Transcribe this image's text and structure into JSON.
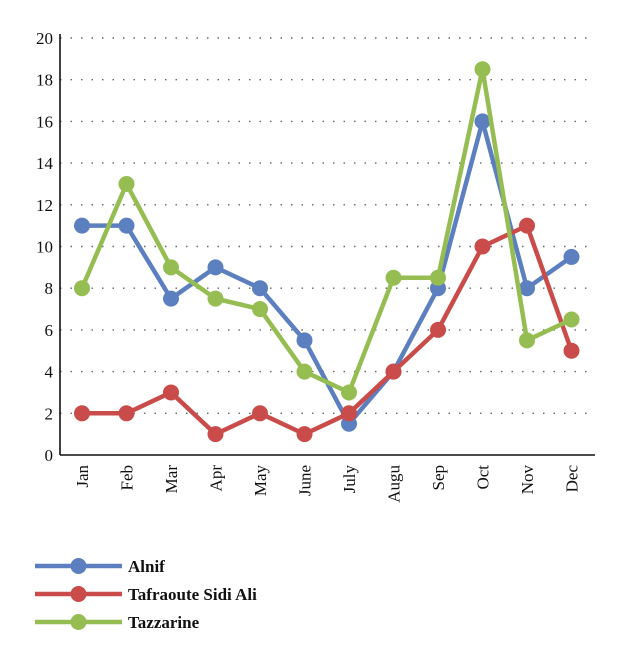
{
  "chart_data": {
    "type": "line",
    "categories": [
      "Jan",
      "Feb",
      "Mar",
      "Apr",
      "May",
      "June",
      "July",
      "Augu",
      "Sep",
      "Oct",
      "Nov",
      "Dec"
    ],
    "ylim": [
      0,
      20
    ],
    "yticks": [
      "0",
      "2",
      "4",
      "6",
      "8",
      "10",
      "12",
      "14",
      "16",
      "18",
      "20"
    ],
    "grid": true,
    "legend_position": "bottom-left",
    "series": [
      {
        "name": "Alnif",
        "color": "#5b7fbf",
        "values": [
          11,
          11,
          7.5,
          9,
          8,
          5.5,
          1.5,
          4,
          8,
          16,
          8,
          9.5
        ]
      },
      {
        "name": "Tafraoute Sidi Ali",
        "color": "#c94c4a",
        "values": [
          2,
          2,
          3,
          1,
          2,
          1,
          2,
          4,
          6,
          10,
          11,
          5
        ]
      },
      {
        "name": "Tazzarine",
        "color": "#96bd52",
        "values": [
          8,
          13,
          9,
          7.5,
          7,
          4,
          3,
          8.5,
          8.5,
          18.5,
          5.5,
          6.5
        ]
      }
    ]
  }
}
